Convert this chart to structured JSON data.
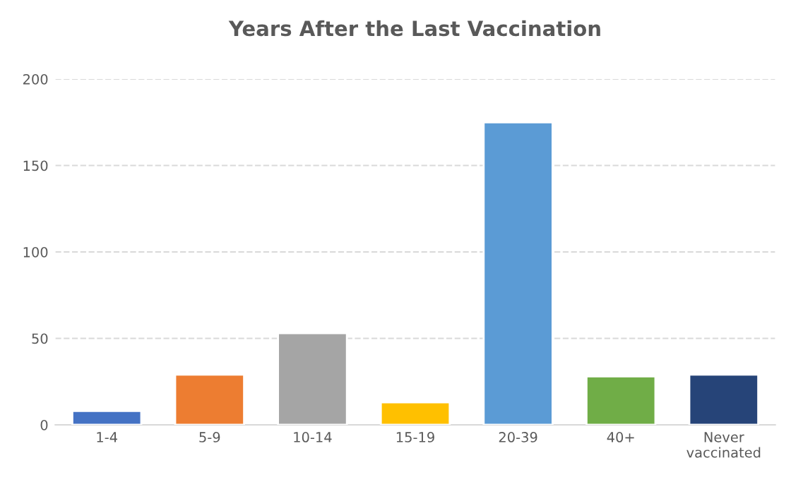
{
  "chart_data": {
    "type": "bar",
    "title": "Years After the Last Vaccination",
    "categories": [
      "1-4",
      "5-9",
      "10-14",
      "15-19",
      "20-39",
      "40+",
      "Never\nvaccinated"
    ],
    "values": [
      8,
      29,
      53,
      13,
      175,
      28,
      29
    ],
    "colors": [
      "#4472c4",
      "#ed7d31",
      "#a5a5a5",
      "#ffc000",
      "#5b9bd5",
      "#70ad47",
      "#264478"
    ],
    "ylim": [
      0,
      200
    ],
    "yticks": [
      0,
      50,
      100,
      150,
      200
    ],
    "grid": "y",
    "legend": false
  }
}
